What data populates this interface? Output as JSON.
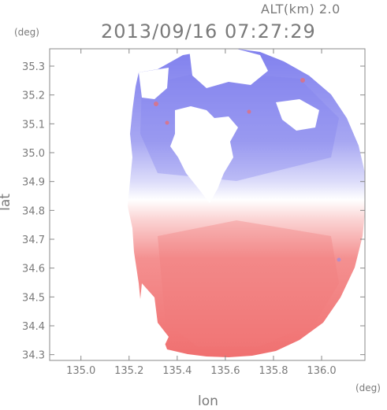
{
  "header": {
    "altitude_label": "ALT(km) 2.0",
    "timestamp": "2013/09/16 07:27:29"
  },
  "axes": {
    "y_unit": "(deg)",
    "x_unit": "(deg)",
    "y_label": "lat",
    "x_label": "lon"
  },
  "map": {
    "type": "radar-velocity-map",
    "colors": {
      "approaching": "#8c8cf0",
      "receding": "#f06b6b",
      "zero": "#ffffff",
      "frame": "#888888",
      "text": "#7a7a7a"
    },
    "radar_center": {
      "lon": 135.52,
      "lat": 34.82
    },
    "x_range": [
      134.87,
      136.18
    ],
    "y_range": [
      34.28,
      35.36
    ],
    "x_ticks": [
      {
        "value": 135.0,
        "label": "135.0"
      },
      {
        "value": 135.2,
        "label": "135.2"
      },
      {
        "value": 135.4,
        "label": "135.4"
      },
      {
        "value": 135.6,
        "label": "135.6"
      },
      {
        "value": 135.8,
        "label": "135.8"
      },
      {
        "value": 136.0,
        "label": "136.0"
      }
    ],
    "y_ticks": [
      {
        "value": 35.3,
        "label": "35.3"
      },
      {
        "value": 35.2,
        "label": "35.2"
      },
      {
        "value": 35.1,
        "label": "35.1"
      },
      {
        "value": 35.0,
        "label": "35.0"
      },
      {
        "value": 34.9,
        "label": "34.9"
      },
      {
        "value": 34.8,
        "label": "34.8"
      },
      {
        "value": 34.7,
        "label": "34.7"
      },
      {
        "value": 34.6,
        "label": "34.6"
      },
      {
        "value": 34.5,
        "label": "34.5"
      },
      {
        "value": 34.4,
        "label": "34.4"
      },
      {
        "value": 34.3,
        "label": "34.3"
      }
    ]
  }
}
